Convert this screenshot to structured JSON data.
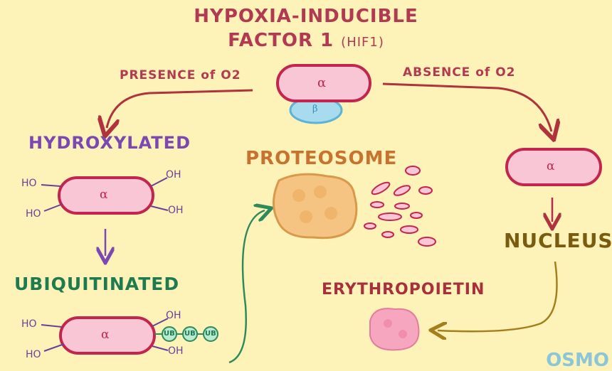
{
  "title": {
    "line1": "HYPOXIA-INDUCIBLE",
    "line2": "FACTOR 1",
    "line2_small": "(HIF1)"
  },
  "labels": {
    "presence": "PRESENCE of O2",
    "absence": "ABSENCE of O2",
    "hydroxylated": "HYDROXYLATED",
    "ubiquitinated": "UBIQUITINATED",
    "proteosome": "PROTEOSOME",
    "nucleus": "NUCLEUS",
    "erythropoietin": "ERYTHROPOIETIN"
  },
  "subunits": {
    "alpha": "α",
    "beta": "β"
  },
  "groups": {
    "ho": "HO",
    "oh": "OH",
    "ub": "UB"
  },
  "logo": "OSMO",
  "colors": {
    "background": "#fdf3b8",
    "alpha_fill": "#f8c6d4",
    "alpha_stroke": "#c2264f",
    "beta_fill": "#a8dbee",
    "arrow_red": "#b0323c",
    "arrow_purple": "#7a47b3",
    "arrow_green": "#2e8a5a",
    "arrow_olive": "#a57f1c"
  }
}
